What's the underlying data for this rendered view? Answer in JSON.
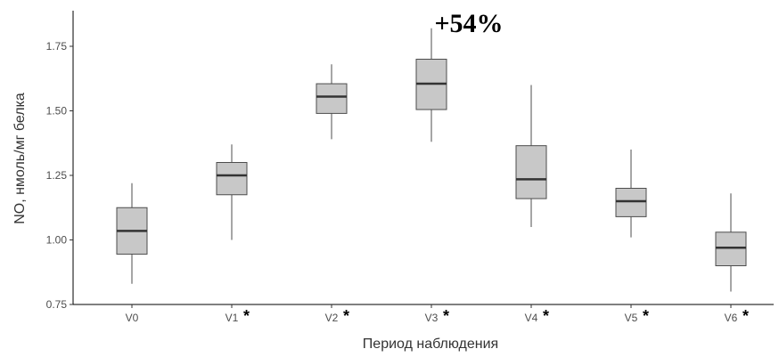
{
  "chart_data": {
    "type": "box",
    "xlabel": "Период наблюдения",
    "ylabel": "NO, нмоль/мг белка",
    "ylim": [
      0.75,
      1.85
    ],
    "yticks": [
      "0.75",
      "1.00",
      "1.25",
      "1.50",
      "1.75"
    ],
    "categories": [
      "V0",
      "V1",
      "V2",
      "V3",
      "V4",
      "V5",
      "V6"
    ],
    "significance_marker": "*",
    "significant": [
      false,
      true,
      true,
      true,
      true,
      true,
      true
    ],
    "boxes": [
      {
        "min": 0.83,
        "q1": 0.945,
        "median": 1.035,
        "q3": 1.125,
        "max": 1.22
      },
      {
        "min": 1.0,
        "q1": 1.175,
        "median": 1.25,
        "q3": 1.3,
        "max": 1.37
      },
      {
        "min": 1.39,
        "q1": 1.49,
        "median": 1.555,
        "q3": 1.605,
        "max": 1.68
      },
      {
        "min": 1.38,
        "q1": 1.505,
        "median": 1.605,
        "q3": 1.7,
        "max": 1.82
      },
      {
        "min": 1.05,
        "q1": 1.16,
        "median": 1.235,
        "q3": 1.365,
        "max": 1.6
      },
      {
        "min": 1.01,
        "q1": 1.09,
        "median": 1.15,
        "q3": 1.2,
        "max": 1.35
      },
      {
        "min": 0.8,
        "q1": 0.9,
        "median": 0.97,
        "q3": 1.03,
        "max": 1.18
      }
    ],
    "annotation": {
      "text": "+54%",
      "category": "V3"
    },
    "box_fill": "#c8c8c8",
    "box_stroke": "#4d4d4d",
    "median_color": "#333333",
    "grid": false
  }
}
